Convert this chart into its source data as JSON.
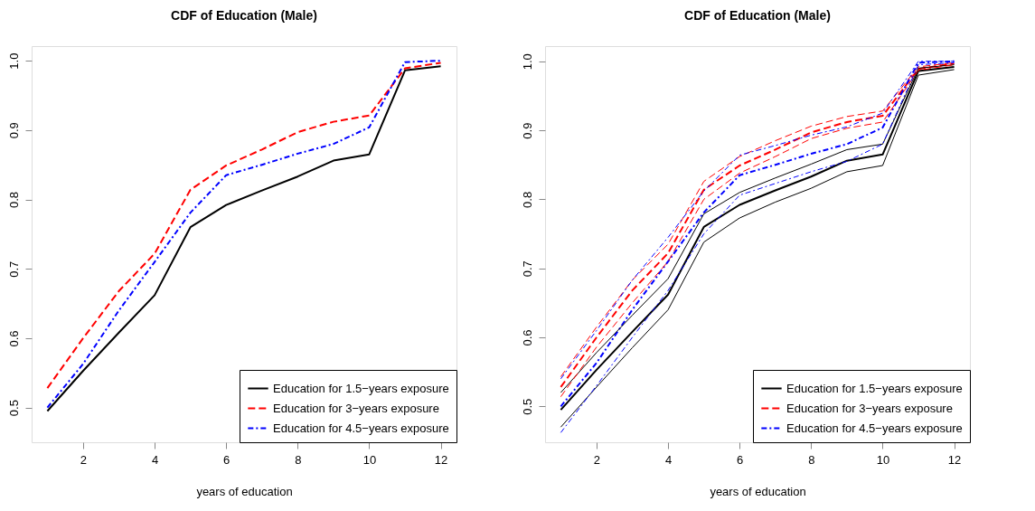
{
  "chart_data": [
    {
      "type": "line",
      "title": "CDF of Education (Male)",
      "xlabel": "years of education",
      "x": [
        1,
        2,
        3,
        4,
        5,
        6,
        7,
        8,
        9,
        10,
        11,
        12
      ],
      "xlim": [
        0.56,
        12.44
      ],
      "xticks": [
        2,
        4,
        6,
        8,
        10,
        12
      ],
      "ylim": [
        0.45,
        1.021
      ],
      "yticks": [
        0.5,
        0.6,
        0.7,
        0.8,
        0.9,
        {
          "value": 1.0,
          "label": "1.0"
        }
      ],
      "grid": false,
      "legend": "bottom right",
      "marker": "none",
      "series": [
        {
          "name": "Education for 1.5−years exposure",
          "color": "#000000",
          "line_style": "solid",
          "values": [
            0.495,
            0.553,
            0.608,
            0.662,
            0.76,
            0.792,
            0.813,
            0.833,
            0.856,
            0.865,
            0.986,
            0.992
          ]
        },
        {
          "name": "Education for 3−years exposure",
          "color": "#ff0000",
          "line_style": "dashed",
          "values": [
            0.528,
            0.6,
            0.668,
            0.722,
            0.814,
            0.849,
            0.872,
            0.897,
            0.912,
            0.921,
            0.989,
            0.997
          ]
        },
        {
          "name": "Education for 4.5−years exposure",
          "color": "#0000ff",
          "line_style": "dashdot",
          "values": [
            0.5,
            0.563,
            0.64,
            0.71,
            0.781,
            0.835,
            0.85,
            0.866,
            0.88,
            0.904,
            0.998,
            1.0
          ]
        }
      ]
    },
    {
      "type": "line",
      "title": "CDF of Education (Male)",
      "xlabel": "years of education",
      "x": [
        1,
        2,
        3,
        4,
        5,
        6,
        7,
        8,
        9,
        10,
        11,
        12
      ],
      "xlim": [
        0.56,
        12.44
      ],
      "xticks": [
        2,
        4,
        6,
        8,
        10,
        12
      ],
      "ylim": [
        0.448,
        1.022
      ],
      "yticks": [
        0.5,
        0.6,
        0.7,
        0.8,
        0.9,
        {
          "value": 1.0,
          "label": "1.0"
        }
      ],
      "grid": false,
      "legend": "bottom right",
      "marker": "none",
      "series": [
        {
          "name": "Education for 1.5−years exposure",
          "color": "#000000",
          "line_style": "solid",
          "values": [
            0.495,
            0.553,
            0.608,
            0.662,
            0.76,
            0.792,
            0.813,
            0.833,
            0.856,
            0.865,
            0.986,
            0.992
          ]
        },
        {
          "name": "Education for 3−years exposure",
          "color": "#ff0000",
          "line_style": "dashed",
          "values": [
            0.528,
            0.6,
            0.668,
            0.722,
            0.814,
            0.849,
            0.872,
            0.897,
            0.912,
            0.921,
            0.989,
            0.997
          ]
        },
        {
          "name": "Education for 4.5−years exposure",
          "color": "#0000ff",
          "line_style": "dashdot",
          "values": [
            0.5,
            0.563,
            0.64,
            0.71,
            0.781,
            0.835,
            0.85,
            0.866,
            0.88,
            0.904,
            0.998,
            1.0
          ]
        },
        {
          "color": "#000000",
          "line_style": "solid",
          "values": [
            0.47,
            0.528,
            0.585,
            0.64,
            0.738,
            0.773,
            0.796,
            0.816,
            0.84,
            0.849,
            0.98,
            0.988
          ]
        },
        {
          "color": "#000000",
          "line_style": "solid",
          "values": [
            0.52,
            0.578,
            0.632,
            0.685,
            0.779,
            0.81,
            0.831,
            0.851,
            0.872,
            0.88,
            0.99,
            0.995
          ]
        },
        {
          "color": "#ff0000",
          "line_style": "dashed",
          "values": [
            0.514,
            0.586,
            0.65,
            0.71,
            0.8,
            0.838,
            0.862,
            0.888,
            0.903,
            0.912,
            0.987,
            0.995
          ]
        },
        {
          "color": "#ff0000",
          "line_style": "dashed",
          "values": [
            0.543,
            0.615,
            0.683,
            0.735,
            0.826,
            0.862,
            0.885,
            0.906,
            0.92,
            0.928,
            0.992,
            0.998
          ]
        },
        {
          "color": "#0000ff",
          "line_style": "dashdot",
          "values": [
            0.462,
            0.53,
            0.6,
            0.668,
            0.75,
            0.806,
            0.823,
            0.84,
            0.855,
            0.88,
            0.995,
            0.998
          ]
        },
        {
          "color": "#0000ff",
          "line_style": "dashdot",
          "values": [
            0.54,
            0.61,
            0.683,
            0.745,
            0.812,
            0.864,
            0.878,
            0.893,
            0.905,
            0.925,
            1.0,
            1.0
          ]
        }
      ]
    }
  ]
}
